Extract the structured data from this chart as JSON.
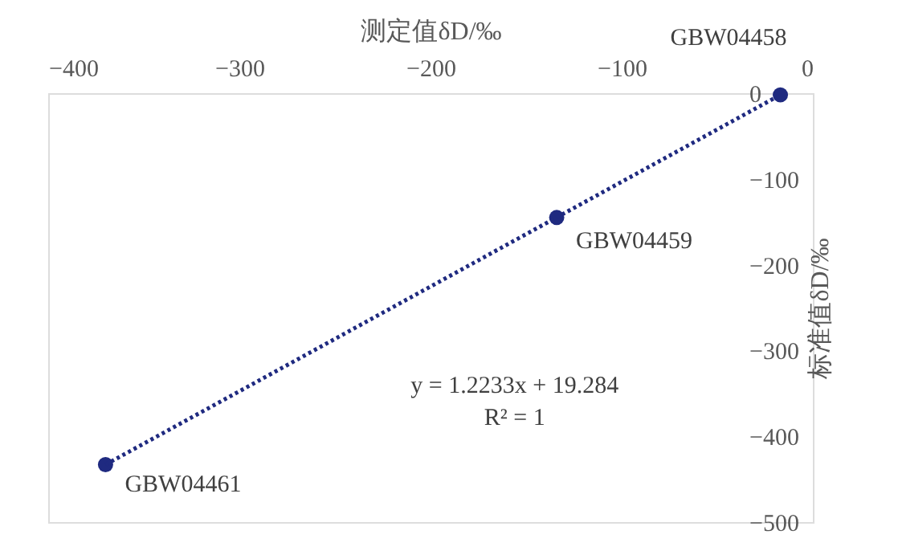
{
  "chart_data": {
    "type": "scatter",
    "xlabel": "测定值δD/‰",
    "ylabel": "标准值δD/‰",
    "series": [
      {
        "type": "scatter",
        "color": "#1f2a80",
        "x": [
          -370,
          -134,
          -17
        ],
        "values": [
          -433,
          -145,
          -2
        ],
        "marker": "circle"
      },
      {
        "type": "line",
        "color": "#1f2a80",
        "x": [
          -370,
          -17
        ],
        "values": [
          -433,
          -2
        ],
        "line_style": "dotted"
      }
    ],
    "xlim": [
      -400,
      0
    ],
    "xticks": [
      -400,
      -300,
      -200,
      -100,
      0
    ],
    "ylim": [
      -500,
      0
    ],
    "yticks": [
      -500,
      -400,
      -300,
      -200,
      -100,
      0
    ],
    "grid": false,
    "annotations": [
      {
        "text": "GBW04461",
        "x": -370,
        "y": -433
      },
      {
        "text": "GBW04459",
        "x": -134,
        "y": -145
      },
      {
        "text": "GBW04458",
        "x": -17,
        "y": -2
      },
      "y = 1.2233x + 19.284",
      "R² = 1"
    ]
  }
}
